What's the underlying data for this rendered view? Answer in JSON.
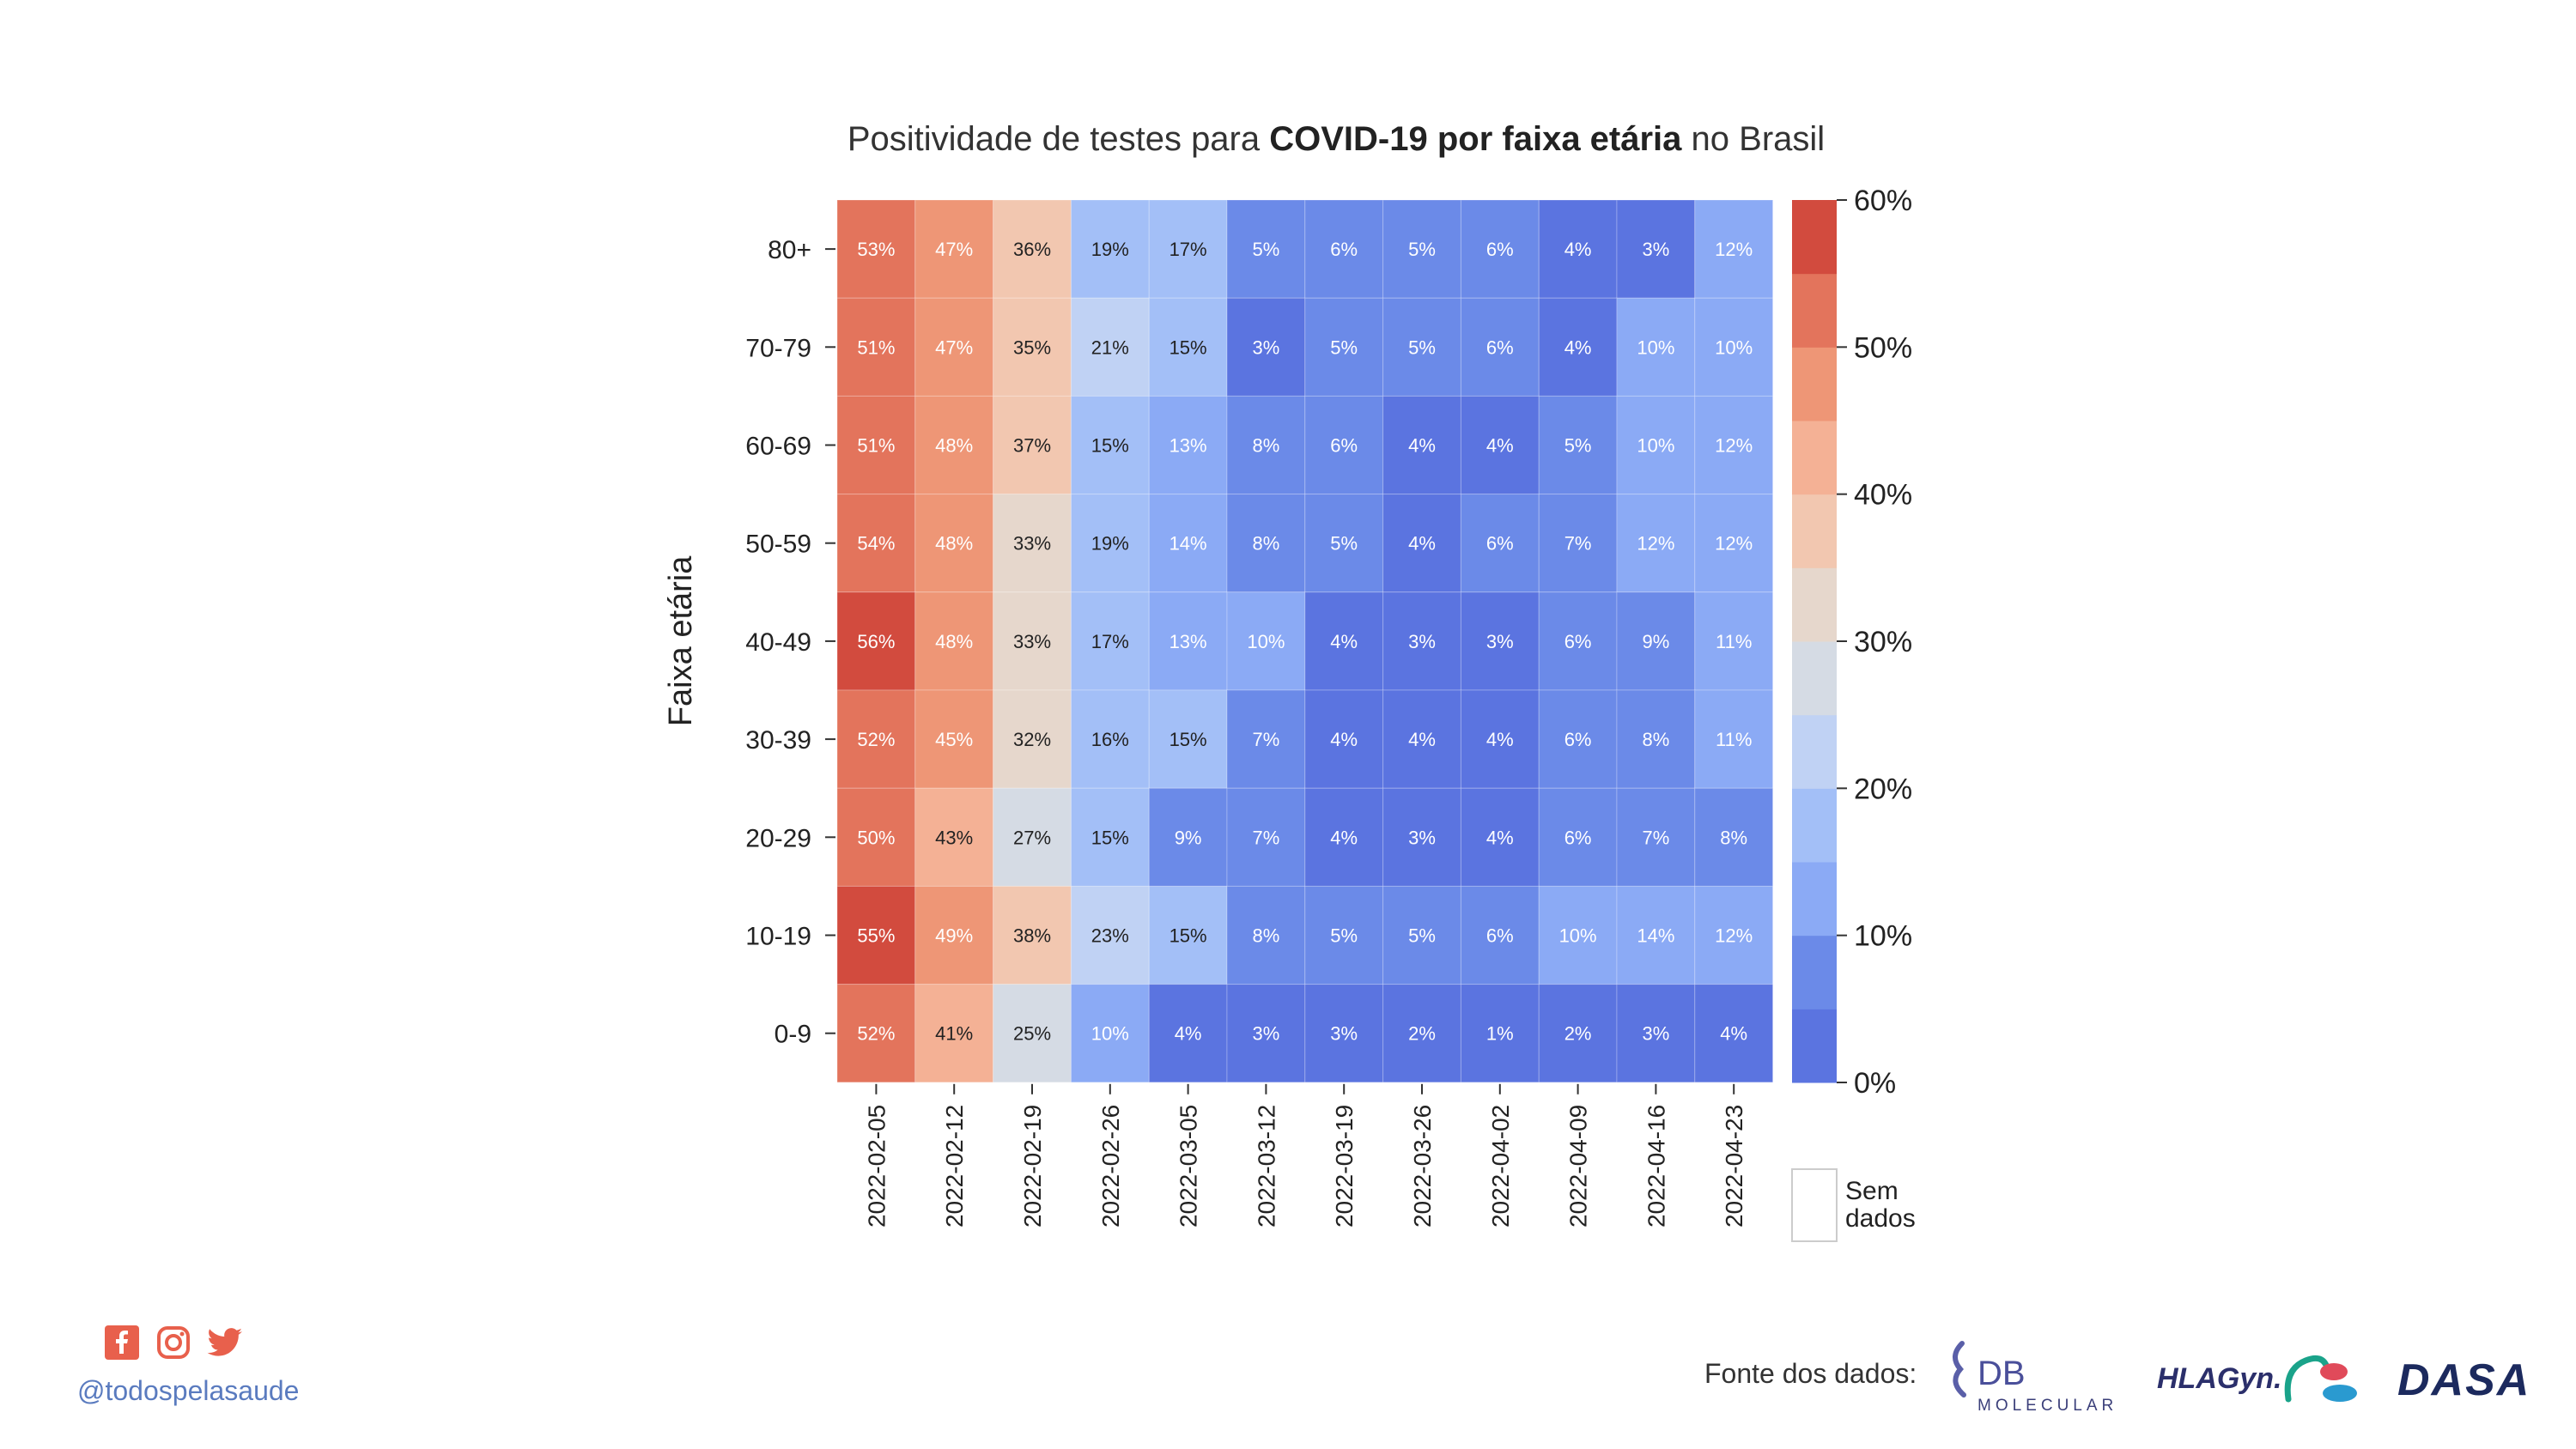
{
  "title": {
    "prefix": "Positividade de testes para ",
    "bold": "COVID-19 por faixa etária",
    "suffix": " no Brasil"
  },
  "chart_data": {
    "type": "heatmap",
    "ylabel": "Faixa etária",
    "xlabel": "",
    "rows": [
      "80+",
      "70-79",
      "60-69",
      "50-59",
      "40-49",
      "30-39",
      "20-29",
      "10-19",
      "0-9"
    ],
    "columns": [
      "2022-02-05",
      "2022-02-12",
      "2022-02-19",
      "2022-02-26",
      "2022-03-05",
      "2022-03-12",
      "2022-03-19",
      "2022-03-26",
      "2022-04-02",
      "2022-04-09",
      "2022-04-16",
      "2022-04-23"
    ],
    "values": [
      [
        53,
        47,
        36,
        19,
        17,
        5,
        6,
        5,
        6,
        4,
        3,
        12
      ],
      [
        51,
        47,
        35,
        21,
        15,
        3,
        5,
        5,
        6,
        4,
        10,
        10
      ],
      [
        51,
        48,
        37,
        15,
        13,
        8,
        6,
        4,
        4,
        5,
        10,
        12
      ],
      [
        54,
        48,
        33,
        19,
        14,
        8,
        5,
        4,
        6,
        7,
        12,
        12
      ],
      [
        56,
        48,
        33,
        17,
        13,
        10,
        4,
        3,
        3,
        6,
        9,
        11
      ],
      [
        52,
        45,
        32,
        16,
        15,
        7,
        4,
        4,
        4,
        6,
        8,
        11
      ],
      [
        50,
        43,
        27,
        15,
        9,
        7,
        4,
        3,
        4,
        6,
        7,
        8
      ],
      [
        55,
        49,
        38,
        23,
        15,
        8,
        5,
        5,
        6,
        10,
        14,
        12
      ],
      [
        52,
        41,
        25,
        10,
        4,
        3,
        3,
        2,
        1,
        2,
        3,
        4
      ]
    ],
    "value_suffix": "%",
    "colorbar": {
      "min": 0,
      "max": 60,
      "step": 5,
      "ticks": [
        "0%",
        "10%",
        "20%",
        "30%",
        "40%",
        "50%",
        "60%"
      ],
      "colors": [
        "#5b74e0",
        "#6b8ae8",
        "#8baaf5",
        "#a3bff7",
        "#c0d2f4",
        "#d5dbe4",
        "#e6d7cc",
        "#f2c7b0",
        "#f4b195",
        "#ee9676",
        "#e3745c",
        "#d24b3e"
      ]
    },
    "no_data_label": [
      "Sem",
      "dados"
    ]
  },
  "footer": {
    "handle": "@todospelasaude",
    "source_label": "Fonte dos dados:",
    "social_icons": [
      "facebook-icon",
      "instagram-icon",
      "twitter-icon"
    ],
    "social_color": "#e8604c",
    "logos": {
      "db": {
        "main": "DB",
        "sub": "MOLECULAR"
      },
      "hlagyn": "HLAGyn.",
      "dasa": "DASA"
    }
  }
}
